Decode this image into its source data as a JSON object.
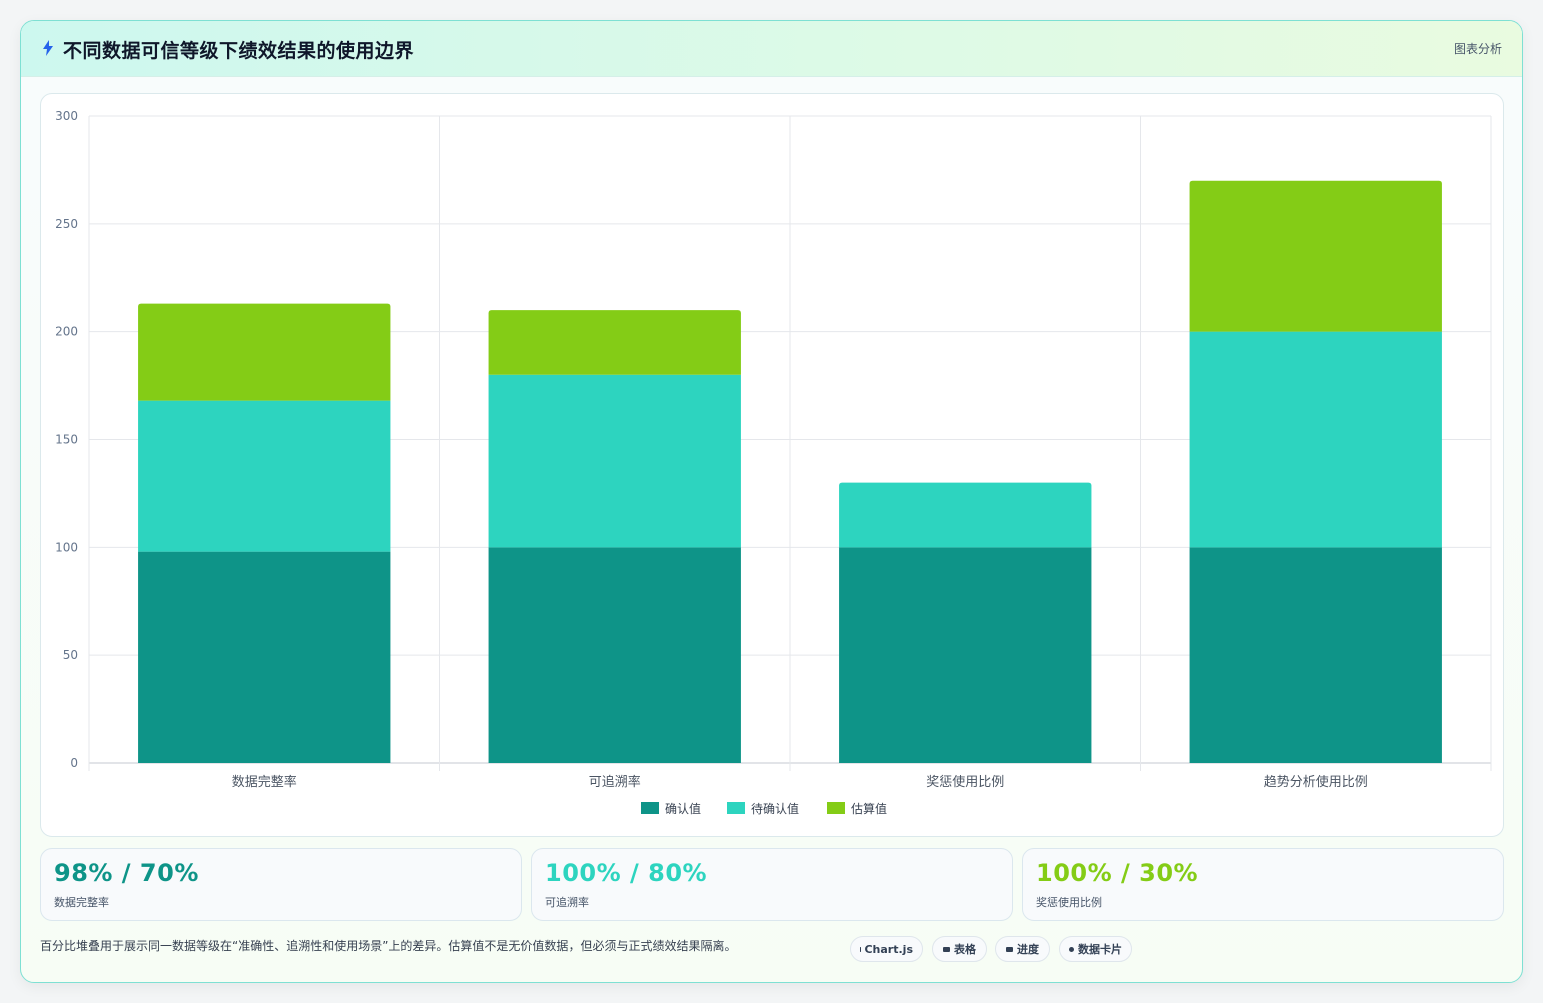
{
  "header": {
    "title": "不同数据可信等级下绩效结果的使用边界",
    "tag": "图表分析"
  },
  "colors": {
    "confirmed": "#0e9488",
    "pending": "#2dd4bf",
    "estimated": "#84cc16",
    "grid": "#e5e7eb",
    "tick": "#64748b"
  },
  "chart_data": {
    "type": "bar",
    "stacked": true,
    "categories": [
      "数据完整率",
      "可追溯率",
      "奖惩使用比例",
      "趋势分析使用比例"
    ],
    "series": [
      {
        "name": "确认值",
        "color": "#0e9488",
        "values": [
          98,
          100,
          100,
          100
        ]
      },
      {
        "name": "待确认值",
        "color": "#2dd4bf",
        "values": [
          70,
          80,
          30,
          100
        ]
      },
      {
        "name": "估算值",
        "color": "#84cc16",
        "values": [
          45,
          30,
          0,
          70
        ]
      }
    ],
    "yticks": [
      "0",
      "50",
      "100",
      "150",
      "200",
      "250",
      "300"
    ],
    "ylim": [
      0,
      300
    ],
    "grid": true,
    "legend_position": "bottom"
  },
  "stats": [
    {
      "value": "98% / 70%",
      "label": "数据完整率",
      "color": "#0e9488"
    },
    {
      "value": "100% / 80%",
      "label": "可追溯率",
      "color": "#2dd4bf"
    },
    {
      "value": "100% / 30%",
      "label": "奖惩使用比例",
      "color": "#84cc16"
    }
  ],
  "footnote": "百分比堆叠用于展示同一数据等级在“准确性、追溯性和使用场景”上的差异。估算值不是无价值数据，但必须与正式绩效结果隔离。",
  "chips": [
    {
      "label": "Chart.js",
      "icon": "chart-icon"
    },
    {
      "label": "表格",
      "icon": "table-icon"
    },
    {
      "label": "进度",
      "icon": "progress-icon"
    },
    {
      "label": "数据卡片",
      "icon": "card-icon"
    }
  ]
}
